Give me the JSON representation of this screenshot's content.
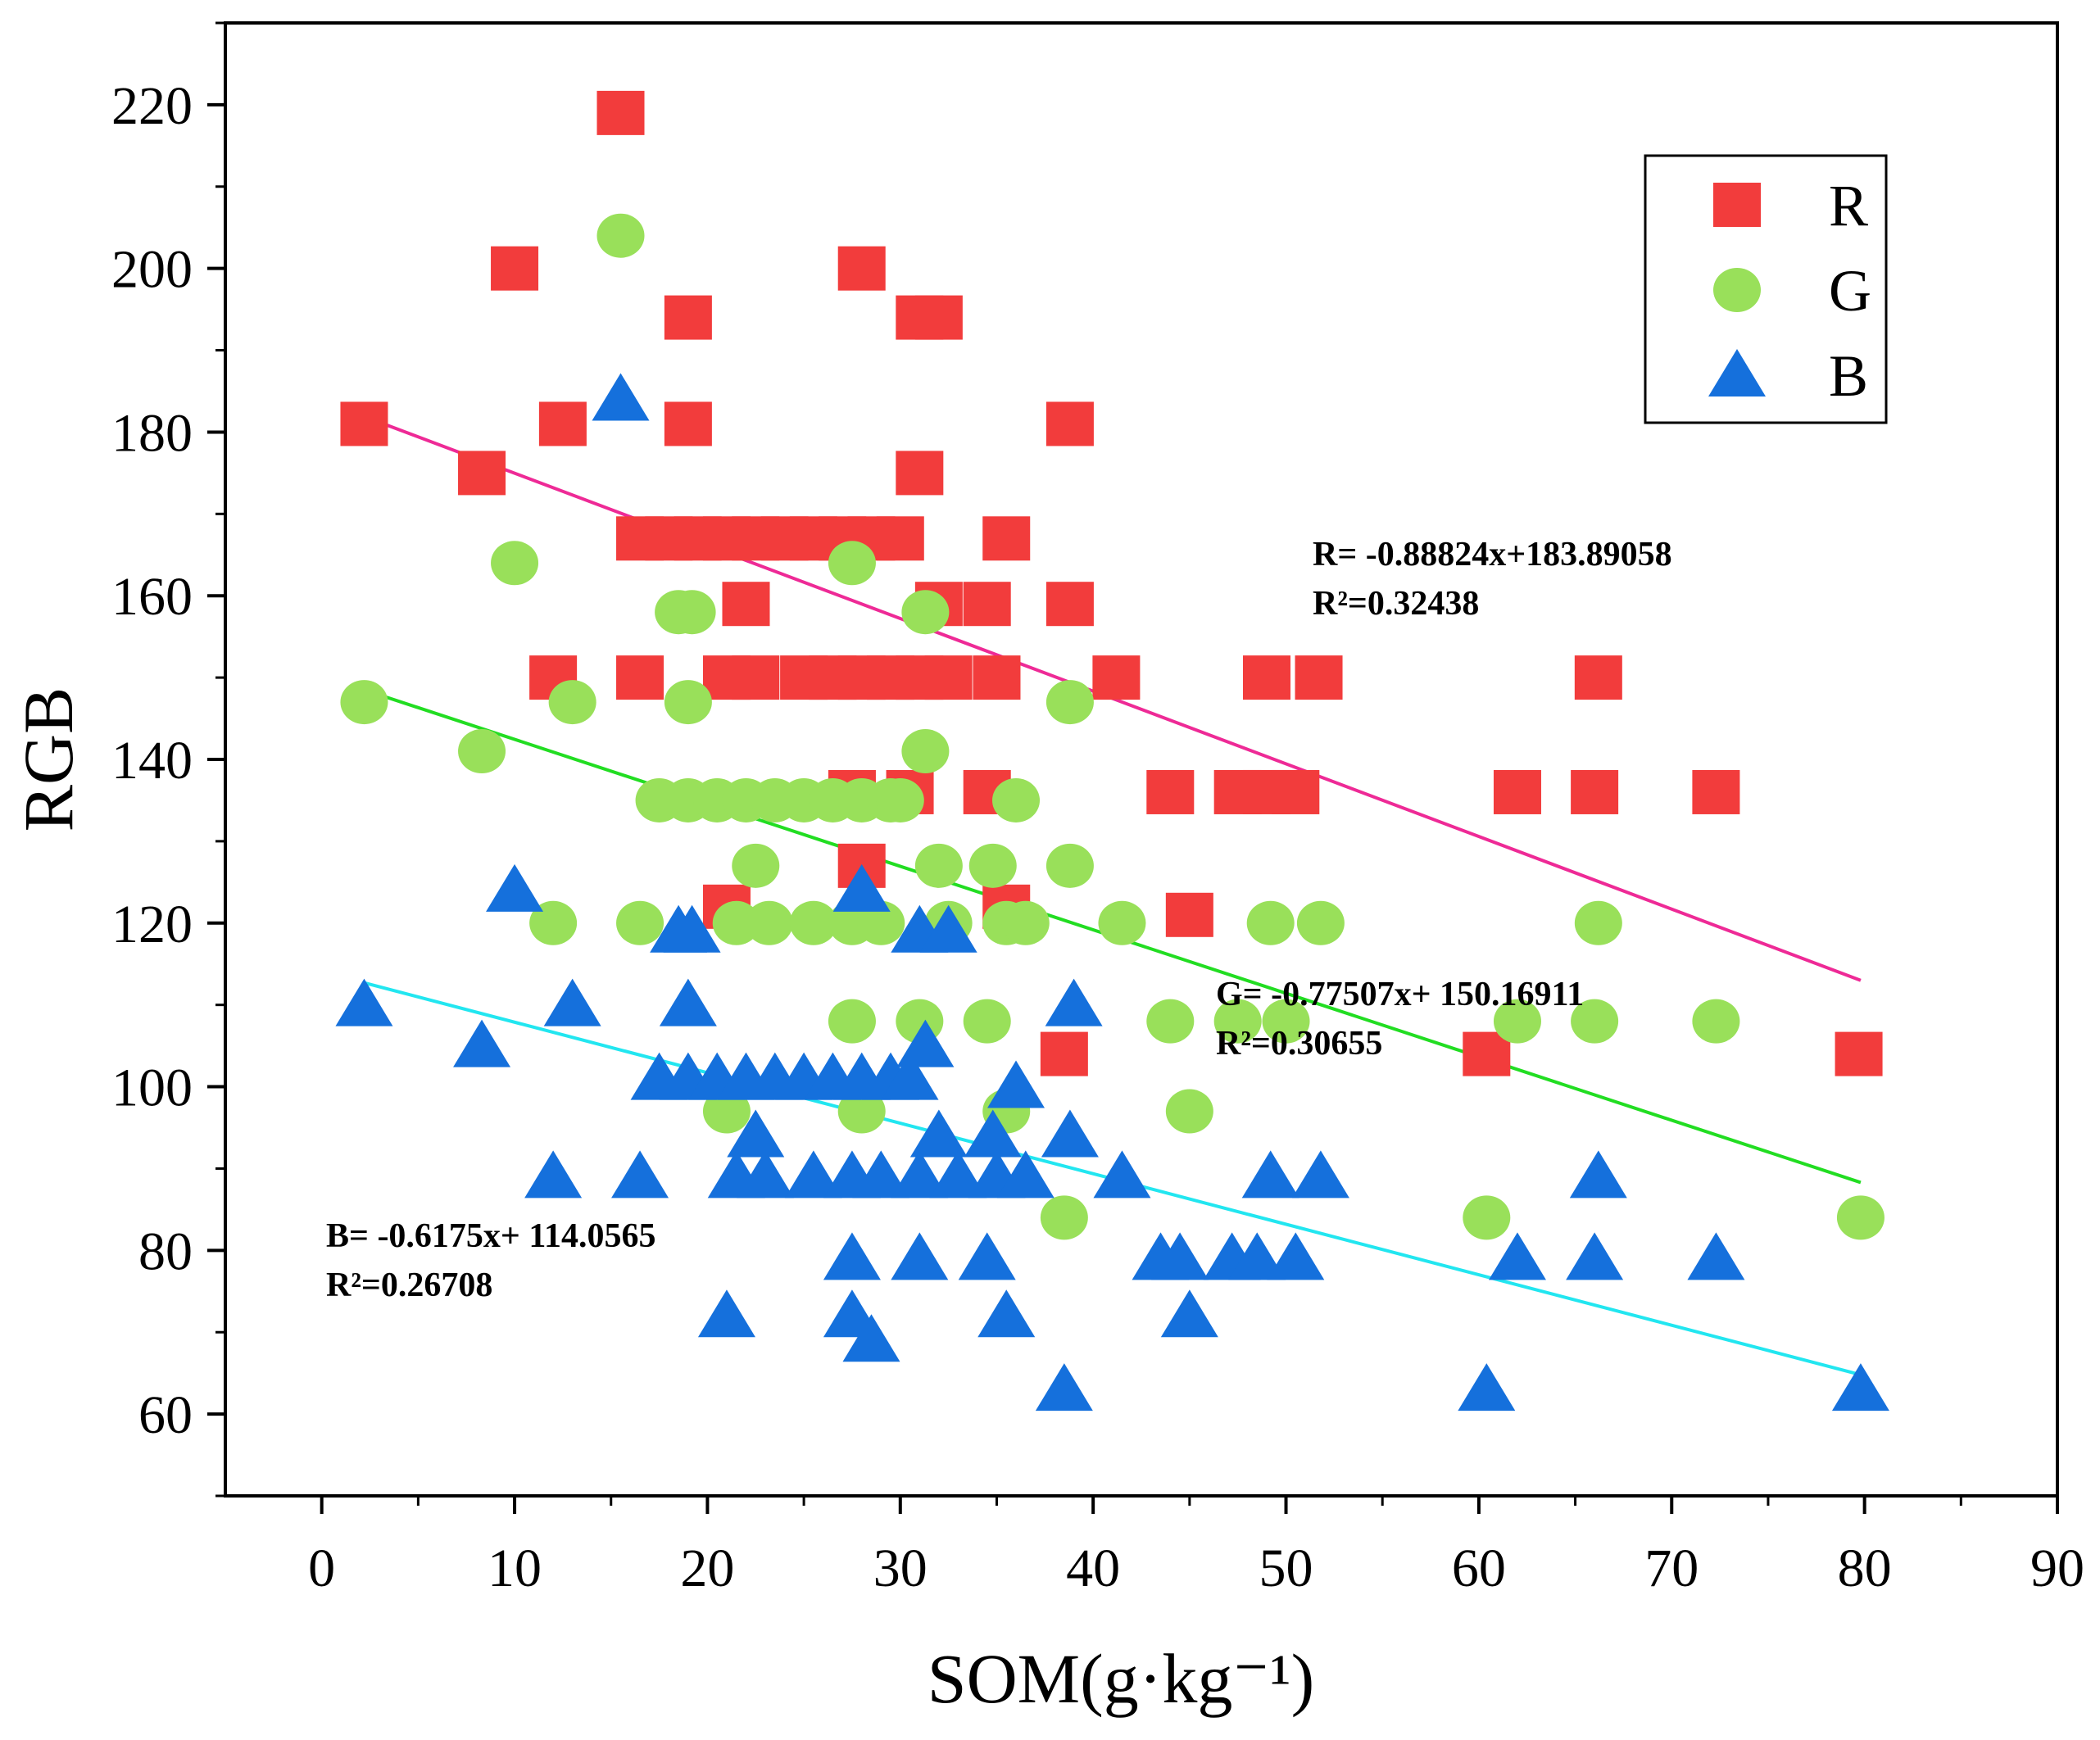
{
  "chart_data": {
    "type": "scatter",
    "title": "",
    "xlabel": "SOM(g·kg⁻¹)",
    "ylabel": "RGB",
    "xlim": [
      -5,
      90
    ],
    "ylim": [
      50,
      230
    ],
    "xticks": [
      0,
      10,
      20,
      30,
      40,
      50,
      60,
      70,
      80,
      90
    ],
    "yticks": [
      60,
      80,
      100,
      120,
      140,
      160,
      180,
      200,
      220
    ],
    "grid": false,
    "legend_position": "top-right",
    "series": [
      {
        "name": "R",
        "marker": "square",
        "color": "#f23c3c",
        "points": [
          [
            2.2,
            181
          ],
          [
            8.3,
            175
          ],
          [
            10,
            200
          ],
          [
            12.5,
            181
          ],
          [
            15.5,
            219
          ],
          [
            19,
            194
          ],
          [
            19,
            181
          ],
          [
            16.5,
            167
          ],
          [
            18,
            167
          ],
          [
            19.5,
            167
          ],
          [
            21,
            167
          ],
          [
            22.5,
            167
          ],
          [
            24,
            167
          ],
          [
            25.5,
            167
          ],
          [
            27,
            167
          ],
          [
            28.5,
            167
          ],
          [
            30,
            167
          ],
          [
            28,
            200
          ],
          [
            31,
            194
          ],
          [
            32,
            194
          ],
          [
            31,
            175
          ],
          [
            22,
            159
          ],
          [
            32,
            159
          ],
          [
            34.5,
            159
          ],
          [
            35.5,
            167
          ],
          [
            38.8,
            181
          ],
          [
            38.8,
            159
          ],
          [
            12,
            150
          ],
          [
            16.5,
            150
          ],
          [
            21,
            150
          ],
          [
            22.5,
            150
          ],
          [
            25,
            150
          ],
          [
            26.5,
            150
          ],
          [
            28,
            150
          ],
          [
            29.5,
            150
          ],
          [
            31,
            150
          ],
          [
            32.5,
            150
          ],
          [
            35,
            150
          ],
          [
            41.2,
            150
          ],
          [
            49,
            150
          ],
          [
            51.7,
            150
          ],
          [
            27.5,
            136
          ],
          [
            30.5,
            136
          ],
          [
            34.5,
            136
          ],
          [
            44,
            136
          ],
          [
            47.5,
            136
          ],
          [
            49,
            136
          ],
          [
            50.5,
            136
          ],
          [
            28,
            127
          ],
          [
            21,
            122
          ],
          [
            35.5,
            122
          ],
          [
            45,
            121
          ],
          [
            38.5,
            104
          ],
          [
            60.4,
            104
          ],
          [
            62,
            136
          ],
          [
            66,
            136
          ],
          [
            66.2,
            150
          ],
          [
            72.3,
            136
          ],
          [
            79.7,
            104
          ]
        ]
      },
      {
        "name": "G",
        "marker": "circle",
        "color": "#99e05a",
        "points": [
          [
            2.2,
            147
          ],
          [
            8.3,
            141
          ],
          [
            10,
            164
          ],
          [
            12,
            120
          ],
          [
            13,
            147
          ],
          [
            15.5,
            204
          ],
          [
            16.5,
            120
          ],
          [
            18.5,
            158
          ],
          [
            19.2,
            158
          ],
          [
            19,
            147
          ],
          [
            17.5,
            135
          ],
          [
            19,
            135
          ],
          [
            20.5,
            135
          ],
          [
            22,
            135
          ],
          [
            23.5,
            135
          ],
          [
            25,
            135
          ],
          [
            26.5,
            135
          ],
          [
            28,
            135
          ],
          [
            29.5,
            135
          ],
          [
            30,
            135
          ],
          [
            27.5,
            164
          ],
          [
            31.3,
            158
          ],
          [
            31.3,
            141
          ],
          [
            22.5,
            127
          ],
          [
            32,
            127
          ],
          [
            34.8,
            127
          ],
          [
            38.8,
            127
          ],
          [
            36,
            135
          ],
          [
            21.5,
            120
          ],
          [
            23.2,
            120
          ],
          [
            25.5,
            120
          ],
          [
            27.5,
            120
          ],
          [
            29,
            120
          ],
          [
            32.5,
            120
          ],
          [
            35.5,
            120
          ],
          [
            36.5,
            120
          ],
          [
            41.5,
            120
          ],
          [
            49.2,
            120
          ],
          [
            51.8,
            120
          ],
          [
            21,
            97
          ],
          [
            28,
            97
          ],
          [
            35.5,
            97
          ],
          [
            27.5,
            108
          ],
          [
            31,
            108
          ],
          [
            34.5,
            108
          ],
          [
            38.8,
            147
          ],
          [
            44,
            108
          ],
          [
            45,
            97
          ],
          [
            47.5,
            108
          ],
          [
            50,
            108
          ],
          [
            38.5,
            84
          ],
          [
            60.4,
            84
          ],
          [
            62,
            108
          ],
          [
            66,
            108
          ],
          [
            66.2,
            120
          ],
          [
            72.3,
            108
          ],
          [
            79.8,
            84
          ]
        ]
      },
      {
        "name": "B",
        "marker": "triangle",
        "color": "#1570dc",
        "points": [
          [
            2.2,
            110
          ],
          [
            8.3,
            105
          ],
          [
            10,
            124
          ],
          [
            12,
            89
          ],
          [
            13,
            110
          ],
          [
            15.5,
            184
          ],
          [
            16.5,
            89
          ],
          [
            18.5,
            119
          ],
          [
            19.2,
            119
          ],
          [
            19,
            110
          ],
          [
            17.5,
            101
          ],
          [
            19,
            101
          ],
          [
            20.5,
            101
          ],
          [
            22,
            101
          ],
          [
            23.5,
            101
          ],
          [
            25,
            101
          ],
          [
            26.5,
            101
          ],
          [
            28,
            101
          ],
          [
            29.5,
            101
          ],
          [
            30.5,
            101
          ],
          [
            31.3,
            105
          ],
          [
            22.5,
            94
          ],
          [
            32,
            94
          ],
          [
            34.8,
            94
          ],
          [
            38.8,
            94
          ],
          [
            36,
            100
          ],
          [
            28,
            124
          ],
          [
            21.5,
            89
          ],
          [
            23,
            89
          ],
          [
            25.5,
            89
          ],
          [
            27.5,
            89
          ],
          [
            29,
            89
          ],
          [
            31,
            89
          ],
          [
            33,
            89
          ],
          [
            35,
            89
          ],
          [
            36.5,
            89
          ],
          [
            41.5,
            89
          ],
          [
            49.2,
            89
          ],
          [
            51.8,
            89
          ],
          [
            31,
            119
          ],
          [
            32.5,
            119
          ],
          [
            39,
            110
          ],
          [
            21,
            72
          ],
          [
            27.5,
            72
          ],
          [
            28.5,
            69
          ],
          [
            35.5,
            72
          ],
          [
            27.5,
            79
          ],
          [
            31,
            79
          ],
          [
            34.5,
            79
          ],
          [
            38.5,
            63
          ],
          [
            43.5,
            79
          ],
          [
            44.5,
            79
          ],
          [
            45,
            72
          ],
          [
            47.2,
            79
          ],
          [
            48.5,
            79
          ],
          [
            50.5,
            79
          ],
          [
            60.4,
            63
          ],
          [
            62,
            79
          ],
          [
            66,
            79
          ],
          [
            66.2,
            89
          ],
          [
            72.3,
            79
          ],
          [
            79.8,
            63
          ]
        ]
      }
    ],
    "trendlines": [
      {
        "series": "R",
        "color": "#ee2a96",
        "x": [
          2.2,
          79.8
        ],
        "y": [
          181.9,
          113.0
        ],
        "equation": "R= -0.88824x+183.89058",
        "r2": "R²=0.32438"
      },
      {
        "series": "G",
        "color": "#22dd22",
        "x": [
          2.2,
          79.8
        ],
        "y": [
          148.5,
          88.3
        ],
        "equation": "G= -0.77507x+ 150.16911",
        "r2": "R²=0.30655"
      },
      {
        "series": "B",
        "color": "#22e6f0",
        "x": [
          2.2,
          79.8
        ],
        "y": [
          112.7,
          64.8
        ],
        "equation": "B= -0.6175x+  114.0565",
        "r2": "R²=0.26708"
      }
    ]
  }
}
